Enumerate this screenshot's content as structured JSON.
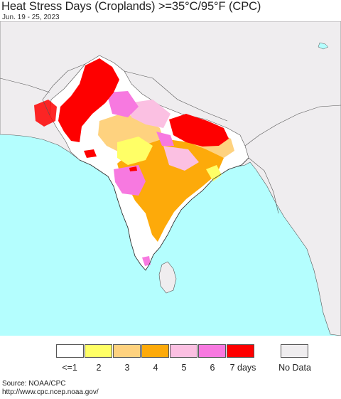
{
  "title": "Heat Stress Days (Croplands) >=35°C/95°F (CPC)",
  "subtitle": "Jun. 19 - 25, 2023",
  "legend": {
    "items": [
      {
        "label": "<=1",
        "color": "#ffffff"
      },
      {
        "label": "2",
        "color": "#ffff66"
      },
      {
        "label": "3",
        "color": "#fed27f"
      },
      {
        "label": "4",
        "color": "#fdaa0a"
      },
      {
        "label": "5",
        "color": "#fbc0e2"
      },
      {
        "label": "6",
        "color": "#f779e0"
      },
      {
        "label": "7 days",
        "color": "#fe0000"
      }
    ],
    "no_data": {
      "label": "No Data",
      "color": "#efedef"
    }
  },
  "source": {
    "line1": "Source: NOAA/CPC",
    "line2": "http://www.cpc.ncep.noaa.gov/"
  }
}
